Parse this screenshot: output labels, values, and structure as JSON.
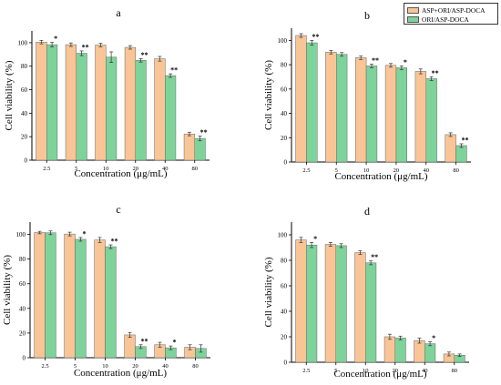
{
  "colors": {
    "series1": "#f9c596",
    "series2": "#7ed39b",
    "axis": "#000000",
    "errorbar": "#333333"
  },
  "legend": {
    "series1": "ASP+ORI/ASP-DOCA",
    "series2": "ORI/ASP-DOCA"
  },
  "chart_data": [
    {
      "type": "bar",
      "title": "a",
      "xlabel": "Concentration (μg/mL)",
      "ylabel": "Cell viability (%)",
      "ylim": [
        0,
        110
      ],
      "yticks": [
        0,
        20,
        40,
        60,
        80,
        100
      ],
      "categories": [
        "2.5",
        "5",
        "10",
        "20",
        "40",
        "80"
      ],
      "series": [
        {
          "name": "ASP+ORI/ASP-DOCA",
          "values": [
            100.5,
            98.3,
            98.0,
            96.0,
            86.3,
            22.3
          ],
          "errors": [
            1.5,
            1.5,
            1.5,
            1.5,
            2.0,
            1.5
          ]
        },
        {
          "name": "ORI/ASP-DOCA",
          "values": [
            98.3,
            91.0,
            87.7,
            85.0,
            72.0,
            18.5
          ],
          "errors": [
            2.0,
            2.0,
            4.5,
            1.5,
            1.5,
            2.0
          ]
        }
      ],
      "annotations": [
        "*",
        "**",
        "",
        "**",
        "**",
        "**"
      ]
    },
    {
      "type": "bar",
      "title": "b",
      "xlabel": "Concentration (μg/mL)",
      "ylabel": "Cell viability (%)",
      "ylim": [
        0,
        110
      ],
      "yticks": [
        0,
        20,
        40,
        60,
        80,
        100
      ],
      "categories": [
        "2.5",
        "5",
        "10",
        "20",
        "40",
        "80"
      ],
      "series": [
        {
          "name": "ASP+ORI/ASP-DOCA",
          "values": [
            104.0,
            90.3,
            85.8,
            79.5,
            74.5,
            22.5
          ],
          "errors": [
            1.5,
            1.5,
            1.5,
            1.5,
            2.0,
            1.5
          ]
        },
        {
          "name": "ORI/ASP-DOCA",
          "values": [
            98.0,
            88.5,
            79.0,
            77.5,
            68.5,
            13.5
          ],
          "errors": [
            2.0,
            1.5,
            1.5,
            1.5,
            1.5,
            1.5
          ]
        }
      ],
      "annotations": [
        "**",
        "",
        "**",
        "*",
        "**",
        "**"
      ]
    },
    {
      "type": "bar",
      "title": "c",
      "xlabel": "Concentration (μg/mL)",
      "ylabel": "Cell viability (%)",
      "ylim": [
        0,
        110
      ],
      "yticks": [
        0,
        20,
        40,
        60,
        80,
        100
      ],
      "categories": [
        "2.5",
        "5",
        "10",
        "20",
        "40",
        "80"
      ],
      "series": [
        {
          "name": "ASP+ORI/ASP-DOCA",
          "values": [
            101.5,
            100.3,
            95.5,
            18.5,
            10.5,
            8.5
          ],
          "errors": [
            1.0,
            1.5,
            2.0,
            2.0,
            2.0,
            2.0
          ]
        },
        {
          "name": "ORI/ASP-DOCA",
          "values": [
            101.3,
            96.0,
            90.0,
            9.0,
            8.0,
            7.5
          ],
          "errors": [
            1.5,
            1.5,
            1.5,
            1.5,
            1.5,
            3.0
          ]
        }
      ],
      "annotations": [
        "",
        "*",
        "**",
        "**",
        "*",
        ""
      ]
    },
    {
      "type": "bar",
      "title": "d",
      "xlabel": "Concentration (μg/mL)",
      "ylabel": "Cell viability (%)",
      "ylim": [
        0,
        110
      ],
      "yticks": [
        0,
        20,
        40,
        60,
        80,
        100
      ],
      "categories": [
        "2.5",
        "5",
        "10",
        "20",
        "40",
        "80"
      ],
      "series": [
        {
          "name": "ASP+ORI/ASP-DOCA",
          "values": [
            96.0,
            92.5,
            86.0,
            20.0,
            17.0,
            6.5
          ],
          "errors": [
            2.0,
            1.5,
            1.5,
            2.0,
            2.0,
            1.5
          ]
        },
        {
          "name": "ORI/ASP-DOCA",
          "values": [
            92.0,
            91.5,
            78.0,
            19.0,
            14.5,
            5.5
          ],
          "errors": [
            2.0,
            1.5,
            1.5,
            1.5,
            1.5,
            1.0
          ]
        }
      ],
      "annotations": [
        "*",
        "",
        "**",
        "",
        "*",
        ""
      ]
    }
  ]
}
